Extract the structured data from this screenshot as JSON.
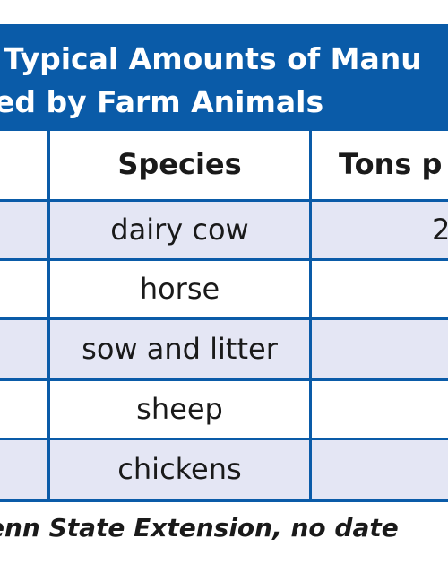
{
  "title": {
    "line1": "Typical Amounts of Manu",
    "line2": "ed by Farm Animals"
  },
  "table": {
    "headers": {
      "species": "Species",
      "tons": "Tons p"
    },
    "rows": [
      {
        "species": "dairy cow",
        "tons": "2"
      },
      {
        "species": "horse",
        "tons": ""
      },
      {
        "species": "sow and litter",
        "tons": ""
      },
      {
        "species": "sheep",
        "tons": ""
      },
      {
        "species": "chickens",
        "tons": ""
      }
    ]
  },
  "source": "enn State Extension, no date",
  "colors": {
    "accent": "#0a5ba8",
    "shaded_row": "#e4e6f4"
  }
}
